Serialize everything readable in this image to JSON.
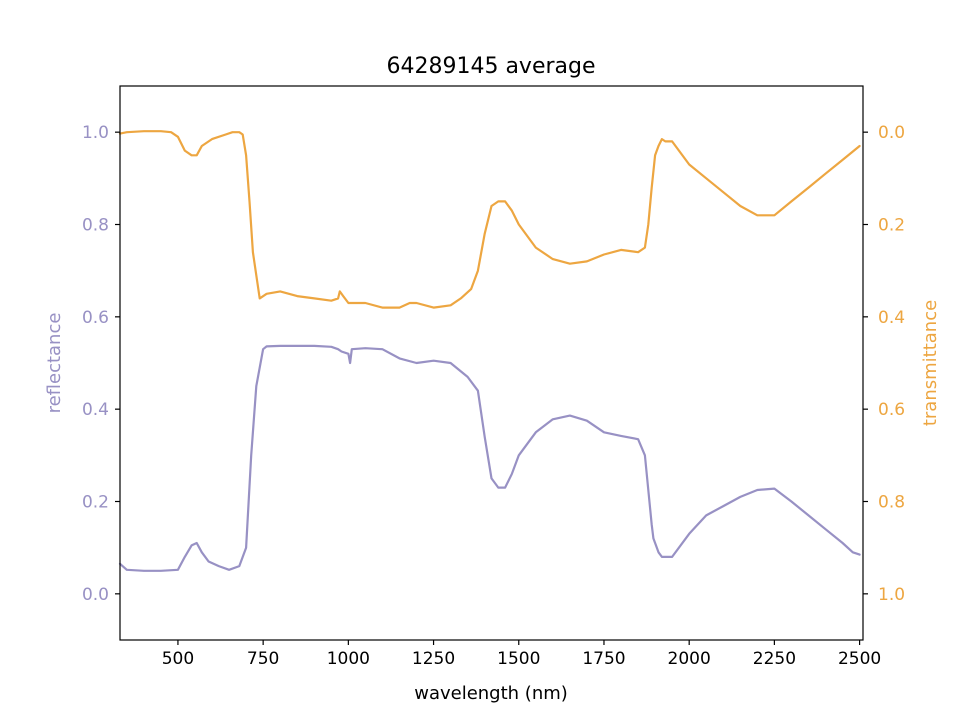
{
  "chart_data": {
    "type": "line",
    "title": "64289145 average",
    "xlabel": "wavelength (nm)",
    "ylabel_left": "reflectance",
    "ylabel_right": "transmittance",
    "xlim": [
      330,
      2510
    ],
    "ylim_left": [
      -0.1,
      1.1
    ],
    "ylim_right": [
      1.1,
      -0.1
    ],
    "right_axis_inverted": true,
    "grid": false,
    "x_ticks": [
      500,
      750,
      1000,
      1250,
      1500,
      1750,
      2000,
      2250,
      2500
    ],
    "left_ticks": [
      0.0,
      0.2,
      0.4,
      0.6,
      0.8,
      1.0
    ],
    "right_ticks": [
      0.0,
      0.2,
      0.4,
      0.6,
      0.8,
      1.0
    ],
    "tick_labels_x": [
      "500",
      "750",
      "1000",
      "1250",
      "1500",
      "1750",
      "2000",
      "2250",
      "2500"
    ],
    "tick_labels_left": [
      "0.0",
      "0.2",
      "0.4",
      "0.6",
      "0.8",
      "1.0"
    ],
    "tick_labels_right": [
      "0.0",
      "0.2",
      "0.4",
      "0.6",
      "0.8",
      "1.0"
    ],
    "colors": {
      "reflectance": "#9891c4",
      "transmittance": "#eda641"
    },
    "series": [
      {
        "axis": "left",
        "x": [
          330,
          350,
          400,
          450,
          500,
          520,
          540,
          555,
          570,
          590,
          620,
          650,
          680,
          700,
          715,
          730,
          750,
          760,
          800,
          900,
          950,
          970,
          980,
          1000,
          1005,
          1010,
          1050,
          1100,
          1150,
          1200,
          1250,
          1300,
          1350,
          1380,
          1400,
          1420,
          1440,
          1460,
          1480,
          1500,
          1550,
          1600,
          1650,
          1700,
          1750,
          1800,
          1850,
          1870,
          1890,
          1895,
          1900,
          1910,
          1920,
          1950,
          2000,
          2050,
          2100,
          2150,
          2200,
          2250,
          2300,
          2350,
          2400,
          2450,
          2480,
          2500
        ],
        "y": [
          0.065,
          0.052,
          0.05,
          0.05,
          0.052,
          0.08,
          0.105,
          0.11,
          0.09,
          0.07,
          0.06,
          0.052,
          0.06,
          0.1,
          0.3,
          0.45,
          0.53,
          0.536,
          0.537,
          0.537,
          0.535,
          0.53,
          0.525,
          0.52,
          0.5,
          0.53,
          0.532,
          0.53,
          0.51,
          0.5,
          0.505,
          0.5,
          0.47,
          0.44,
          0.34,
          0.25,
          0.23,
          0.23,
          0.26,
          0.3,
          0.35,
          0.378,
          0.386,
          0.375,
          0.35,
          0.342,
          0.335,
          0.3,
          0.15,
          0.12,
          0.11,
          0.09,
          0.08,
          0.08,
          0.13,
          0.17,
          0.19,
          0.21,
          0.225,
          0.228,
          0.2,
          0.17,
          0.14,
          0.11,
          0.09,
          0.085
        ]
      },
      {
        "axis": "right",
        "x": [
          330,
          350,
          400,
          450,
          480,
          500,
          520,
          540,
          555,
          570,
          600,
          640,
          660,
          680,
          690,
          700,
          710,
          720,
          740,
          760,
          800,
          850,
          900,
          950,
          970,
          975,
          985,
          1000,
          1010,
          1050,
          1100,
          1150,
          1180,
          1200,
          1250,
          1300,
          1330,
          1360,
          1380,
          1400,
          1420,
          1440,
          1460,
          1480,
          1500,
          1550,
          1600,
          1650,
          1700,
          1750,
          1800,
          1850,
          1870,
          1880,
          1890,
          1900,
          1910,
          1920,
          1930,
          1950,
          2000,
          2050,
          2100,
          2150,
          2200,
          2250,
          2300,
          2350,
          2400,
          2450,
          2500
        ],
        "y": [
          0.003,
          0.0,
          -0.002,
          -0.002,
          0.0,
          0.01,
          0.04,
          0.05,
          0.05,
          0.03,
          0.015,
          0.005,
          0.0,
          0.0,
          0.005,
          0.05,
          0.15,
          0.26,
          0.36,
          0.35,
          0.345,
          0.355,
          0.36,
          0.365,
          0.36,
          0.345,
          0.355,
          0.37,
          0.37,
          0.37,
          0.38,
          0.38,
          0.37,
          0.37,
          0.38,
          0.375,
          0.36,
          0.34,
          0.3,
          0.22,
          0.16,
          0.15,
          0.15,
          0.17,
          0.2,
          0.25,
          0.275,
          0.285,
          0.28,
          0.265,
          0.255,
          0.26,
          0.25,
          0.2,
          0.12,
          0.05,
          0.03,
          0.015,
          0.02,
          0.02,
          0.07,
          0.1,
          0.13,
          0.16,
          0.18,
          0.18,
          0.15,
          0.12,
          0.09,
          0.06,
          0.03
        ]
      }
    ]
  }
}
